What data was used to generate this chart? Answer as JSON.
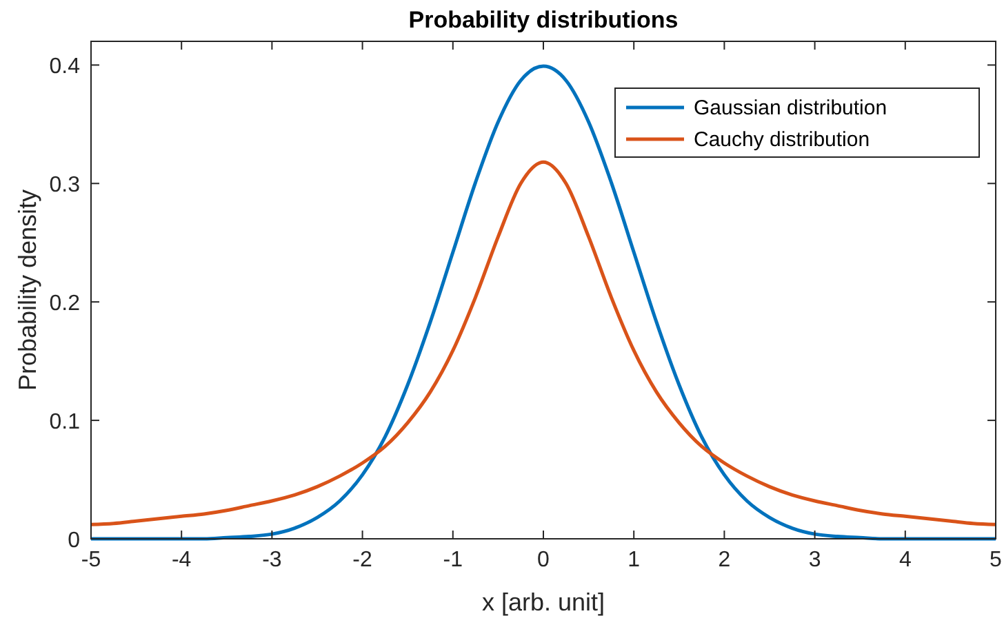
{
  "chart_data": {
    "type": "line",
    "title": "Probability distributions",
    "xlabel": "x [arb. unit]",
    "ylabel": "Probability density",
    "x": [
      -5,
      -4.75,
      -4.5,
      -4.25,
      -4,
      -3.75,
      -3.5,
      -3.25,
      -3,
      -2.75,
      -2.5,
      -2.25,
      -2,
      -1.75,
      -1.5,
      -1.25,
      -1,
      -0.75,
      -0.5,
      -0.25,
      0,
      0.25,
      0.5,
      0.75,
      1,
      1.25,
      1.5,
      1.75,
      2,
      2.25,
      2.5,
      2.75,
      3,
      3.25,
      3.5,
      3.75,
      4,
      4.25,
      4.5,
      4.75,
      5
    ],
    "series": [
      {
        "name": "Gaussian distribution",
        "color": "#0072bd",
        "values": [
          0,
          0,
          0,
          0,
          0,
          0,
          0.001,
          0.002,
          0.004,
          0.009,
          0.018,
          0.032,
          0.054,
          0.086,
          0.13,
          0.183,
          0.242,
          0.301,
          0.352,
          0.387,
          0.399,
          0.387,
          0.352,
          0.301,
          0.242,
          0.183,
          0.13,
          0.086,
          0.054,
          0.032,
          0.018,
          0.009,
          0.004,
          0.002,
          0.001,
          0,
          0,
          0,
          0,
          0,
          0
        ]
      },
      {
        "name": "Cauchy distribution",
        "color": "#d95319",
        "values": [
          0.012,
          0.013,
          0.015,
          0.017,
          0.019,
          0.021,
          0.024,
          0.028,
          0.032,
          0.037,
          0.044,
          0.053,
          0.064,
          0.078,
          0.098,
          0.124,
          0.159,
          0.204,
          0.255,
          0.3,
          0.318,
          0.3,
          0.255,
          0.204,
          0.159,
          0.124,
          0.098,
          0.078,
          0.064,
          0.053,
          0.044,
          0.037,
          0.032,
          0.028,
          0.024,
          0.021,
          0.019,
          0.017,
          0.015,
          0.013,
          0.012
        ]
      }
    ],
    "xlim": [
      -5,
      5
    ],
    "xticks": [
      -5,
      -4,
      -3,
      -2,
      -1,
      0,
      1,
      2,
      3,
      4,
      5
    ],
    "ylim": [
      0,
      0.42
    ],
    "yticks": [
      0,
      0.1,
      0.2,
      0.3,
      0.4
    ],
    "grid": false,
    "legend": "top right",
    "marker": "none",
    "line_style": "solid"
  }
}
